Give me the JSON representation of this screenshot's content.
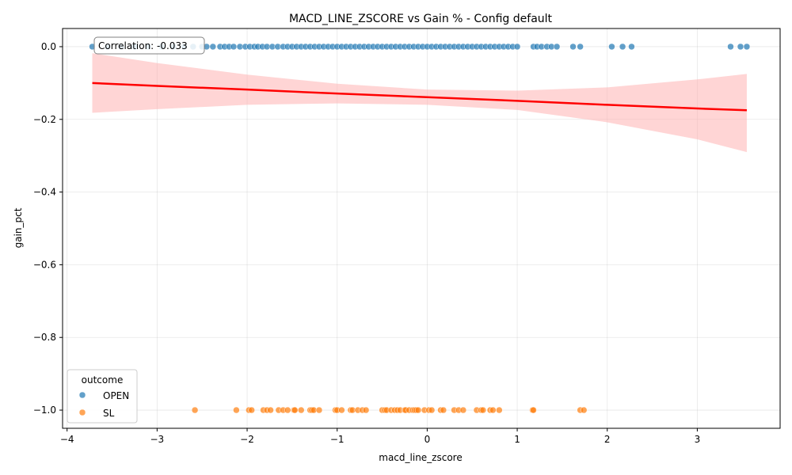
{
  "chart_data": {
    "type": "scatter",
    "title": "MACD_LINE_ZSCORE vs Gain % - Config default",
    "xlabel": "macd_line_zscore",
    "ylabel": "gain_pct",
    "xlim": [
      -4.05,
      3.92
    ],
    "ylim": [
      -1.05,
      0.05
    ],
    "x_ticks": [
      -4,
      -3,
      -2,
      -1,
      0,
      1,
      2,
      3
    ],
    "x_tick_labels": [
      "−4",
      "−3",
      "−2",
      "−1",
      "0",
      "1",
      "2",
      "3"
    ],
    "y_ticks": [
      0.0,
      -0.2,
      -0.4,
      -0.6,
      -0.8,
      -1.0
    ],
    "y_tick_labels": [
      "0.0",
      "−0.2",
      "−0.4",
      "−0.6",
      "−0.8",
      "−1.0"
    ],
    "grid": true,
    "annotation": "Correlation: -0.033",
    "legend": {
      "title": "outcome",
      "placement": "lower-left",
      "entries": [
        {
          "label": "OPEN",
          "color": "#1f77b4"
        },
        {
          "label": "SL",
          "color": "#ff7f0e"
        }
      ]
    },
    "series": [
      {
        "name": "OPEN",
        "color": "#1f77b4",
        "y": 0.0,
        "x": [
          -3.72,
          -3.55,
          -3.4,
          -3.25,
          -3.1,
          -2.95,
          -2.82,
          -2.7,
          -2.6,
          -2.5,
          -2.45,
          -2.38,
          -2.3,
          -2.25,
          -2.2,
          -2.15,
          -2.08,
          -2.02,
          -1.97,
          -1.92,
          -1.88,
          -1.83,
          -1.78,
          -1.72,
          -1.66,
          -1.6,
          -1.55,
          -1.5,
          -1.45,
          -1.4,
          -1.35,
          -1.3,
          -1.25,
          -1.2,
          -1.15,
          -1.1,
          -1.05,
          -1.0,
          -0.95,
          -0.9,
          -0.85,
          -0.8,
          -0.75,
          -0.7,
          -0.65,
          -0.6,
          -0.55,
          -0.5,
          -0.45,
          -0.4,
          -0.35,
          -0.3,
          -0.25,
          -0.2,
          -0.15,
          -0.1,
          -0.05,
          0.0,
          0.05,
          0.1,
          0.15,
          0.2,
          0.25,
          0.3,
          0.35,
          0.4,
          0.45,
          0.5,
          0.55,
          0.6,
          0.65,
          0.7,
          0.75,
          0.8,
          0.85,
          0.9,
          0.95,
          1.0,
          1.18,
          1.22,
          1.27,
          1.33,
          1.38,
          1.44,
          1.62,
          1.7,
          2.05,
          2.17,
          2.27,
          3.37,
          3.48,
          3.55
        ]
      },
      {
        "name": "SL",
        "color": "#ff7f0e",
        "y": -1.0,
        "x": [
          -2.58,
          -2.12,
          -1.98,
          -1.95,
          -1.82,
          -1.78,
          -1.74,
          -1.65,
          -1.6,
          -1.55,
          -1.48,
          -1.47,
          -1.4,
          -1.3,
          -1.28,
          -1.26,
          -1.2,
          -1.02,
          -1.0,
          -0.95,
          -0.85,
          -0.83,
          -0.77,
          -0.72,
          -0.68,
          -0.5,
          -0.47,
          -0.45,
          -0.4,
          -0.36,
          -0.33,
          -0.3,
          -0.25,
          -0.24,
          -0.2,
          -0.16,
          -0.14,
          -0.12,
          -0.1,
          -0.03,
          0.02,
          0.05,
          0.15,
          0.18,
          0.3,
          0.35,
          0.4,
          0.55,
          0.6,
          0.62,
          0.7,
          0.73,
          0.8,
          1.17,
          1.18,
          1.7,
          1.74
        ]
      },
      {
        "name": "",
        "type": "regression",
        "color": "#ff0000",
        "band_color": "#ffb3b3",
        "x": [
          -3.72,
          -3.0,
          -2.0,
          -1.0,
          0.0,
          1.0,
          2.0,
          3.0,
          3.55
        ],
        "y": [
          -0.1,
          -0.108,
          -0.118,
          -0.129,
          -0.139,
          -0.149,
          -0.16,
          -0.17,
          -0.175
        ],
        "ci_lower": [
          -0.182,
          -0.172,
          -0.16,
          -0.156,
          -0.16,
          -0.174,
          -0.208,
          -0.255,
          -0.29
        ],
        "ci_upper": [
          -0.018,
          -0.045,
          -0.077,
          -0.102,
          -0.118,
          -0.121,
          -0.112,
          -0.09,
          -0.075
        ]
      }
    ]
  }
}
